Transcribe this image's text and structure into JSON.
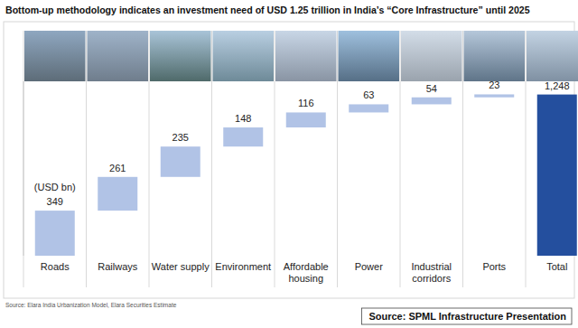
{
  "chart_data": {
    "type": "waterfall",
    "title": "Bottom-up methodology indicates an investment need of USD 1.25 trillion in India’s “Core Infrastructure” until 2025",
    "ylabel": "(USD bn)",
    "categories": [
      "Roads",
      "Railways",
      "Water supply",
      "Environment",
      "Affordable housing",
      "Power",
      "Industrial corridors",
      "Ports",
      "Total"
    ],
    "values": [
      349,
      261,
      235,
      148,
      116,
      63,
      54,
      23,
      1248
    ],
    "value_labels": [
      "349",
      "261",
      "235",
      "148",
      "116",
      "63",
      "54",
      "23",
      "1,248"
    ],
    "colors": [
      "#b1c3e6",
      "#b1c3e6",
      "#b1c3e6",
      "#b1c3e6",
      "#b1c3e6",
      "#b1c3e6",
      "#b1c3e6",
      "#b1c3e6",
      "#244f9e"
    ],
    "ylim": [
      0,
      1350
    ],
    "tick_labels": false,
    "grid": false,
    "data_labels": true,
    "source": "Source: Elara India Urbanization Model, Elara Securities Estimate",
    "credit": "Source: SPML Infrastructure Presentation"
  }
}
